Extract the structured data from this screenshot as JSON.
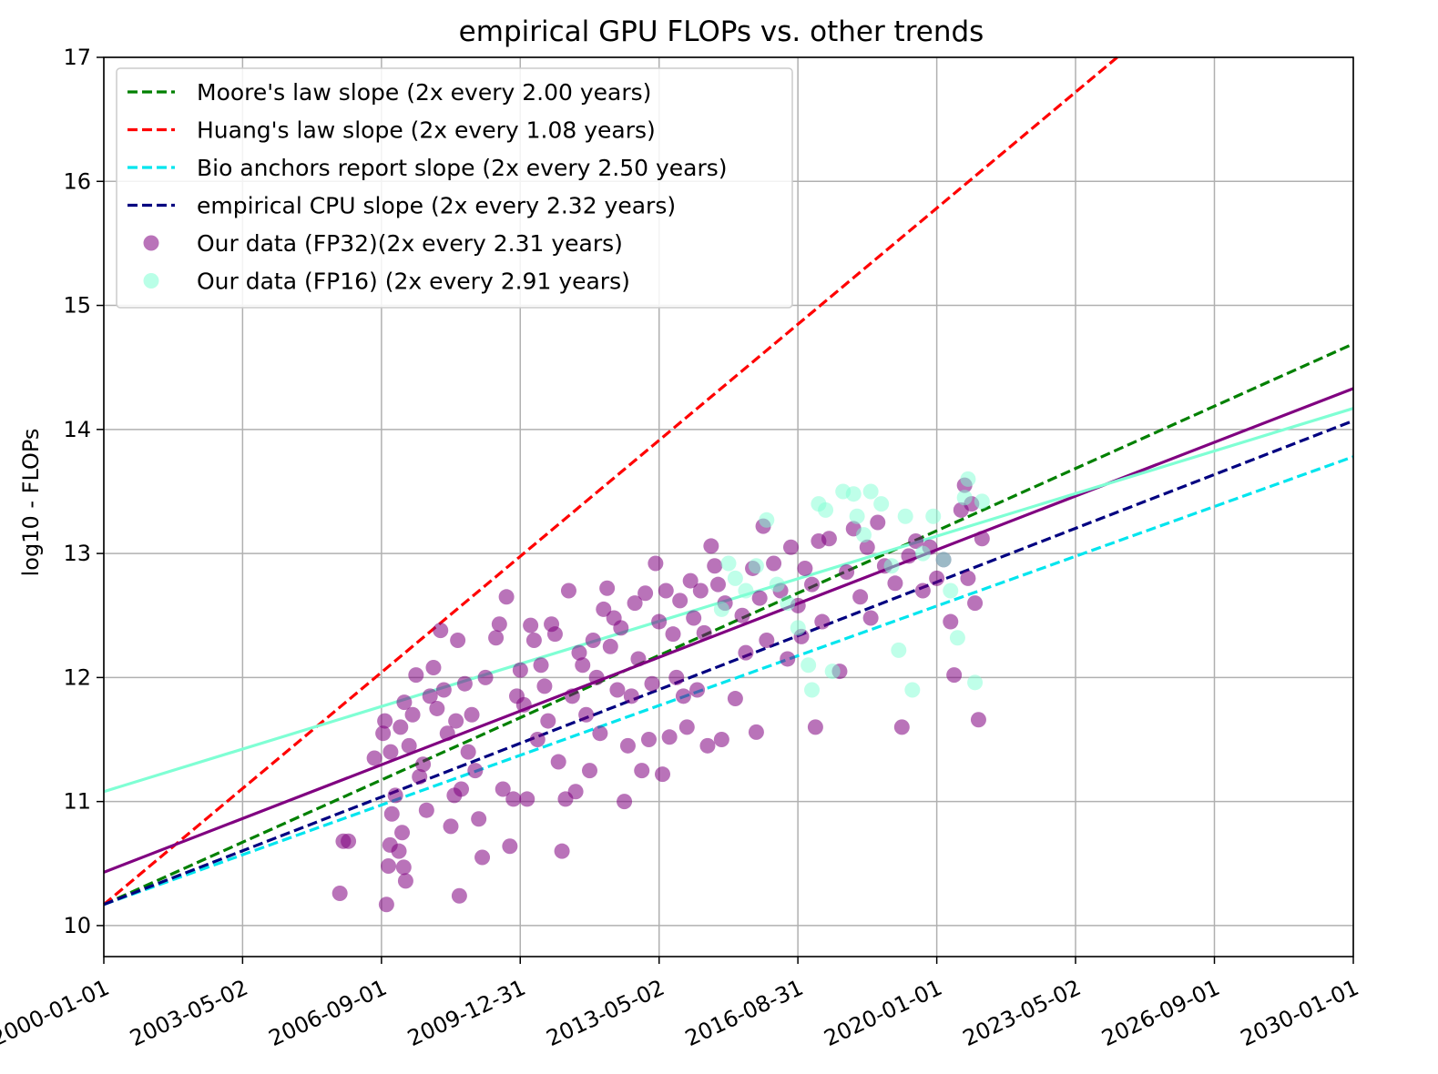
{
  "chart_data": {
    "type": "scatter",
    "title": "empirical GPU FLOPs vs. other trends",
    "xlabel": "",
    "ylabel": "log10 - FLOPs",
    "xlim": [
      "2000-01-01",
      "2030-01-01"
    ],
    "ylim": [
      9.75,
      17
    ],
    "x_ticks": [
      "2000-01-01",
      "2003-05-02",
      "2006-09-01",
      "2009-12-31",
      "2013-05-02",
      "2016-08-31",
      "2020-01-01",
      "2023-05-02",
      "2026-09-01",
      "2030-01-01"
    ],
    "y_ticks": [
      "10",
      "11",
      "12",
      "13",
      "14",
      "15",
      "16",
      "17"
    ],
    "grid": true,
    "legend_position": "top-left",
    "lines": [
      {
        "name": "Moore's law slope (2x every 2.00 years)",
        "color": "#008000",
        "style": "dashed",
        "x": [
          "2000-01-01",
          "2030-01-01"
        ],
        "y": [
          10.17,
          14.69
        ]
      },
      {
        "name": "Huang's law slope (2x every 1.08 years)",
        "color": "#ff0000",
        "style": "dashed",
        "x": [
          "2000-01-01",
          "2024-05-01"
        ],
        "y": [
          10.17,
          17.0
        ]
      },
      {
        "name": "Bio anchors report slope (2x every 2.50 years)",
        "color": "#00e5ee",
        "style": "dashed",
        "x": [
          "2000-01-01",
          "2030-01-01"
        ],
        "y": [
          10.17,
          13.78
        ]
      },
      {
        "name": "empirical CPU slope (2x every 2.32 years)",
        "color": "#000080",
        "style": "dashed",
        "x": [
          "2000-01-01",
          "2030-01-01"
        ],
        "y": [
          10.17,
          14.07
        ]
      },
      {
        "name": "",
        "color": "#800080",
        "style": "solid",
        "x": [
          "2000-01-01",
          "2030-01-01"
        ],
        "y": [
          10.43,
          14.33
        ]
      },
      {
        "name": "",
        "color": "#7fffd4",
        "style": "solid",
        "x": [
          "2000-01-01",
          "2030-01-01"
        ],
        "y": [
          11.08,
          14.17
        ]
      }
    ],
    "series": [
      {
        "name": "Our data (FP32)(2x every 2.31 years)",
        "color": "#800080",
        "points": [
          [
            "2005-09-01",
            10.26
          ],
          [
            "2005-10-01",
            10.68
          ],
          [
            "2005-11-15",
            10.68
          ],
          [
            "2006-07-01",
            11.35
          ],
          [
            "2006-09-15",
            11.55
          ],
          [
            "2006-10-15",
            10.17
          ],
          [
            "2006-11-01",
            10.48
          ],
          [
            "2006-11-15",
            10.65
          ],
          [
            "2006-10-01",
            11.65
          ],
          [
            "2006-11-20",
            11.4
          ],
          [
            "2006-12-01",
            10.9
          ],
          [
            "2007-01-01",
            11.05
          ],
          [
            "2007-02-01",
            10.6
          ],
          [
            "2007-03-01",
            10.75
          ],
          [
            "2007-03-15",
            10.47
          ],
          [
            "2007-04-01",
            10.36
          ],
          [
            "2007-02-15",
            11.6
          ],
          [
            "2007-03-20",
            11.8
          ],
          [
            "2007-05-01",
            11.45
          ],
          [
            "2007-06-01",
            11.7
          ],
          [
            "2007-07-01",
            12.02
          ],
          [
            "2007-08-01",
            11.2
          ],
          [
            "2007-09-01",
            11.3
          ],
          [
            "2007-10-01",
            10.93
          ],
          [
            "2007-11-01",
            11.85
          ],
          [
            "2007-12-01",
            12.08
          ],
          [
            "2008-01-01",
            11.75
          ],
          [
            "2008-02-01",
            12.38
          ],
          [
            "2008-03-01",
            11.9
          ],
          [
            "2008-04-01",
            11.55
          ],
          [
            "2008-05-01",
            10.8
          ],
          [
            "2008-06-01",
            11.05
          ],
          [
            "2008-07-01",
            12.3
          ],
          [
            "2008-06-15",
            11.65
          ],
          [
            "2008-07-15",
            10.24
          ],
          [
            "2008-08-01",
            11.1
          ],
          [
            "2008-09-01",
            11.95
          ],
          [
            "2008-10-01",
            11.4
          ],
          [
            "2008-11-01",
            11.7
          ],
          [
            "2008-12-01",
            11.25
          ],
          [
            "2009-01-01",
            10.86
          ],
          [
            "2009-02-01",
            10.55
          ],
          [
            "2009-03-01",
            12.0
          ],
          [
            "2009-06-01",
            12.32
          ],
          [
            "2009-07-01",
            12.43
          ],
          [
            "2009-08-01",
            11.1
          ],
          [
            "2009-09-01",
            12.65
          ],
          [
            "2009-10-01",
            10.64
          ],
          [
            "2009-11-01",
            11.02
          ],
          [
            "2009-12-01",
            11.85
          ],
          [
            "2010-01-01",
            12.06
          ],
          [
            "2010-02-01",
            11.78
          ],
          [
            "2010-03-01",
            11.02
          ],
          [
            "2010-04-01",
            12.42
          ],
          [
            "2010-05-01",
            12.3
          ],
          [
            "2010-06-01",
            11.5
          ],
          [
            "2010-07-01",
            12.1
          ],
          [
            "2010-08-01",
            11.93
          ],
          [
            "2010-09-01",
            11.65
          ],
          [
            "2010-10-01",
            12.43
          ],
          [
            "2010-11-01",
            12.35
          ],
          [
            "2010-12-01",
            11.32
          ],
          [
            "2011-01-01",
            10.6
          ],
          [
            "2011-02-01",
            11.02
          ],
          [
            "2011-03-01",
            12.7
          ],
          [
            "2011-04-01",
            11.85
          ],
          [
            "2011-05-01",
            11.08
          ],
          [
            "2011-06-01",
            12.2
          ],
          [
            "2011-07-01",
            12.1
          ],
          [
            "2011-08-01",
            11.7
          ],
          [
            "2011-09-01",
            11.25
          ],
          [
            "2011-10-01",
            12.3
          ],
          [
            "2011-11-01",
            12.0
          ],
          [
            "2011-12-01",
            11.55
          ],
          [
            "2012-01-01",
            12.55
          ],
          [
            "2012-02-01",
            12.72
          ],
          [
            "2012-03-01",
            12.25
          ],
          [
            "2012-04-01",
            12.48
          ],
          [
            "2012-05-01",
            11.9
          ],
          [
            "2012-06-01",
            12.4
          ],
          [
            "2012-07-01",
            11.0
          ],
          [
            "2012-08-01",
            11.45
          ],
          [
            "2012-09-01",
            11.85
          ],
          [
            "2012-10-01",
            12.6
          ],
          [
            "2012-11-01",
            12.15
          ],
          [
            "2012-12-01",
            11.25
          ],
          [
            "2013-01-01",
            12.68
          ],
          [
            "2013-02-01",
            11.5
          ],
          [
            "2013-03-01",
            11.95
          ],
          [
            "2013-04-01",
            12.92
          ],
          [
            "2013-05-01",
            12.45
          ],
          [
            "2013-06-01",
            11.22
          ],
          [
            "2013-07-01",
            12.7
          ],
          [
            "2013-08-01",
            11.52
          ],
          [
            "2013-09-01",
            12.35
          ],
          [
            "2013-10-01",
            12.0
          ],
          [
            "2013-11-01",
            12.62
          ],
          [
            "2013-12-01",
            11.85
          ],
          [
            "2014-01-01",
            11.6
          ],
          [
            "2014-02-01",
            12.78
          ],
          [
            "2014-03-01",
            12.48
          ],
          [
            "2014-04-01",
            11.9
          ],
          [
            "2014-05-01",
            12.7
          ],
          [
            "2014-06-01",
            12.36
          ],
          [
            "2014-07-01",
            11.45
          ],
          [
            "2014-08-01",
            13.06
          ],
          [
            "2014-09-01",
            12.9
          ],
          [
            "2014-10-01",
            12.75
          ],
          [
            "2014-11-01",
            11.5
          ],
          [
            "2014-12-01",
            12.6
          ],
          [
            "2015-03-01",
            11.83
          ],
          [
            "2015-05-01",
            12.5
          ],
          [
            "2015-06-01",
            12.2
          ],
          [
            "2015-08-01",
            12.88
          ],
          [
            "2015-09-01",
            11.56
          ],
          [
            "2015-10-01",
            12.64
          ],
          [
            "2015-11-01",
            13.22
          ],
          [
            "2015-12-01",
            12.3
          ],
          [
            "2016-02-01",
            12.92
          ],
          [
            "2016-04-01",
            12.7
          ],
          [
            "2016-06-01",
            12.15
          ],
          [
            "2016-07-01",
            13.05
          ],
          [
            "2016-09-01",
            12.58
          ],
          [
            "2016-10-01",
            12.33
          ],
          [
            "2016-11-01",
            12.88
          ],
          [
            "2017-01-01",
            12.75
          ],
          [
            "2017-02-01",
            11.6
          ],
          [
            "2017-03-01",
            13.1
          ],
          [
            "2017-04-01",
            12.45
          ],
          [
            "2017-06-01",
            13.12
          ],
          [
            "2017-09-01",
            12.05
          ],
          [
            "2017-11-01",
            12.85
          ],
          [
            "2018-01-01",
            13.2
          ],
          [
            "2018-03-01",
            12.65
          ],
          [
            "2018-05-01",
            13.05
          ],
          [
            "2018-06-01",
            12.48
          ],
          [
            "2018-08-01",
            13.25
          ],
          [
            "2018-10-01",
            12.9
          ],
          [
            "2019-01-01",
            12.76
          ],
          [
            "2019-03-01",
            11.6
          ],
          [
            "2019-05-01",
            12.98
          ],
          [
            "2019-07-01",
            13.1
          ],
          [
            "2019-09-01",
            12.7
          ],
          [
            "2019-11-01",
            13.05
          ],
          [
            "2020-01-01",
            12.8
          ],
          [
            "2020-03-01",
            12.95
          ],
          [
            "2020-05-01",
            12.45
          ],
          [
            "2020-06-01",
            12.02
          ],
          [
            "2020-08-01",
            13.35
          ],
          [
            "2020-09-01",
            13.55
          ],
          [
            "2020-10-01",
            12.8
          ],
          [
            "2020-11-01",
            13.4
          ],
          [
            "2020-12-01",
            12.6
          ],
          [
            "2021-01-01",
            11.66
          ],
          [
            "2021-02-01",
            13.12
          ]
        ]
      },
      {
        "name": "Our data (FP16) (2x every 2.91 years)",
        "color": "#7fffd4",
        "points": [
          [
            "2014-11-01",
            12.55
          ],
          [
            "2015-01-01",
            12.92
          ],
          [
            "2015-03-01",
            12.8
          ],
          [
            "2015-06-01",
            12.7
          ],
          [
            "2015-09-01",
            12.9
          ],
          [
            "2015-12-01",
            13.27
          ],
          [
            "2016-03-01",
            12.75
          ],
          [
            "2016-06-01",
            12.6
          ],
          [
            "2016-09-01",
            12.4
          ],
          [
            "2016-12-01",
            12.1
          ],
          [
            "2017-01-01",
            11.9
          ],
          [
            "2017-03-01",
            13.4
          ],
          [
            "2017-05-01",
            13.35
          ],
          [
            "2017-07-01",
            12.05
          ],
          [
            "2017-10-01",
            13.5
          ],
          [
            "2018-01-01",
            13.48
          ],
          [
            "2018-02-01",
            13.3
          ],
          [
            "2018-04-01",
            13.15
          ],
          [
            "2018-06-01",
            13.5
          ],
          [
            "2018-09-01",
            13.4
          ],
          [
            "2018-12-01",
            12.9
          ],
          [
            "2019-02-01",
            12.22
          ],
          [
            "2019-04-01",
            13.3
          ],
          [
            "2019-06-01",
            11.9
          ],
          [
            "2019-09-01",
            13.0
          ],
          [
            "2019-12-01",
            13.3
          ],
          [
            "2020-03-01",
            12.95
          ],
          [
            "2020-05-01",
            12.7
          ],
          [
            "2020-07-01",
            12.32
          ],
          [
            "2020-09-01",
            13.45
          ],
          [
            "2020-10-01",
            13.6
          ],
          [
            "2020-12-01",
            11.96
          ],
          [
            "2021-02-01",
            13.42
          ]
        ]
      }
    ],
    "legend": [
      {
        "label": "Moore's law slope (2x every 2.00 years)",
        "kind": "dashed",
        "color": "#008000"
      },
      {
        "label": "Huang's law slope (2x every 1.08 years)",
        "kind": "dashed",
        "color": "#ff0000"
      },
      {
        "label": "Bio anchors report slope (2x every 2.50 years)",
        "kind": "dashed",
        "color": "#00e5ee"
      },
      {
        "label": "empirical CPU slope (2x every 2.32 years)",
        "kind": "dashed",
        "color": "#000080"
      },
      {
        "label": "Our data (FP32)(2x every 2.31 years)",
        "kind": "marker",
        "color": "#800080"
      },
      {
        "label": "Our data (FP16) (2x every 2.91 years)",
        "kind": "marker",
        "color": "#7fffd4"
      }
    ]
  }
}
